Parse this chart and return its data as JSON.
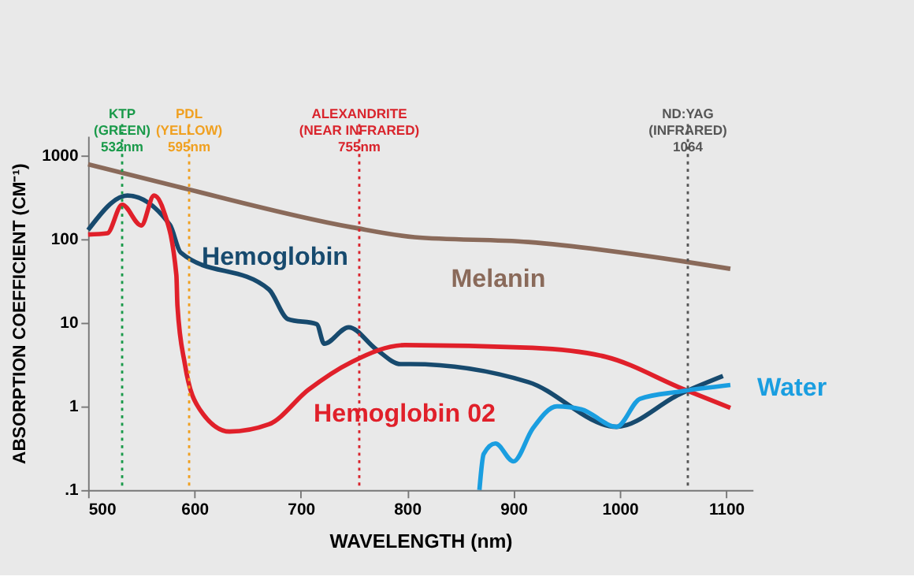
{
  "chart_data": {
    "type": "line",
    "xlabel": "WAVELENGTH (nm)",
    "ylabel": "ABSORPTION COEFFICIENT (CM⁻¹)",
    "log": "y",
    "grid": false,
    "legend": false,
    "xlim": [
      500,
      1125
    ],
    "xticks": [
      500,
      600,
      700,
      800,
      900,
      1000,
      1100
    ],
    "ylim": [
      0.1,
      1700
    ],
    "yticks": [
      {
        "value": 0.1,
        "label": ".1"
      },
      1,
      10,
      100,
      1000
    ],
    "series": [
      {
        "name": "Hemoglobin",
        "color": "#174a6e",
        "x": [
          500,
          537,
          577,
          587,
          670,
          688,
          715,
          722,
          745,
          771,
          794,
          803,
          914,
          997,
          1056,
          1097
        ],
        "values": [
          128,
          330,
          147,
          69,
          25,
          11,
          9.6,
          5.6,
          8.8,
          4.8,
          3.2,
          3.2,
          1.95,
          0.57,
          1.39,
          2.3
        ]
      },
      {
        "name": "Hemoglobin 02",
        "color": "#e0202a",
        "x": [
          500,
          518,
          532,
          550,
          562,
          571,
          583,
          584,
          591,
          605,
          633,
          670,
          707,
          748,
          798,
          918,
          987,
          1060,
          1104
        ],
        "values": [
          113,
          117,
          257,
          145,
          330,
          218,
          37,
          16,
          3.2,
          0.92,
          0.5,
          0.61,
          1.57,
          3.4,
          5.4,
          5.0,
          3.9,
          1.6,
          0.96
        ]
      },
      {
        "name": "Melanin",
        "color": "#8a6a5a",
        "x": [
          500,
          583,
          748,
          807,
          914,
          1056,
          1104
        ],
        "values": [
          780,
          425,
          138,
          105,
          92,
          55,
          44
        ]
      },
      {
        "name": "Water",
        "color": "#1a9ee0",
        "x": [
          868,
          872,
          883,
          900,
          918,
          941,
          964,
          997,
          1019,
          1056,
          1104
        ],
        "values": [
          0.1,
          0.27,
          0.36,
          0.22,
          0.54,
          1.0,
          0.92,
          0.57,
          1.23,
          1.5,
          1.8
        ]
      }
    ],
    "ref_lines": [
      {
        "axis": "x",
        "value": 532,
        "label": "KTP\n(GREEN)\n532nm",
        "color": "#1a9a4a",
        "line_style": "dotted"
      },
      {
        "axis": "x",
        "value": 595,
        "label": "PDL\n(YELLOW)\n595nm",
        "color": "#f0a020",
        "line_style": "dotted"
      },
      {
        "axis": "x",
        "value": 755,
        "label": "ALEXANDRITE\n(NEAR INFRARED)\n755nm",
        "color": "#d9242c",
        "line_style": "dotted"
      },
      {
        "axis": "x",
        "value": 1064,
        "label": "ND:YAG\n(INFRARED)\n1064",
        "color": "#555555",
        "line_style": "dotted"
      }
    ]
  }
}
